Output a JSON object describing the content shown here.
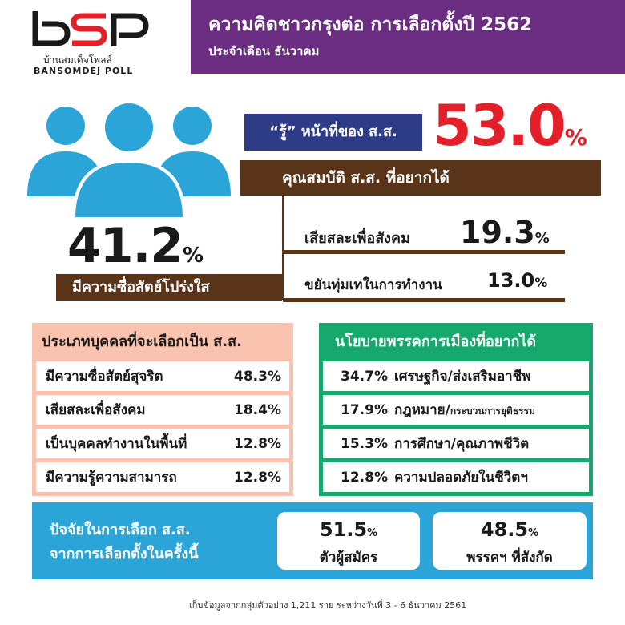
{
  "colors": {
    "purple": "#6b2d82",
    "navy": "#2e3b87",
    "red": "#e3202a",
    "brown": "#5a3419",
    "salmon": "#f9c3b0",
    "green": "#17a86e",
    "blue": "#2ba5d8",
    "people_icon": "#2ba5d8"
  },
  "logo": {
    "mark": "bSP",
    "subtitle": "บ้านสมเด็จโพลล์",
    "english": "BANSOMDEJ POLL"
  },
  "header": {
    "title": "ความคิดชาวกรุงต่อ การเลือกตั้งปี 2562",
    "subtitle": "ประจำเดือน ธันวาคม"
  },
  "chart_data": {
    "type": "table",
    "know_duty": {
      "label": "“รู้” หน้าที่ของ ส.ส.",
      "value": "53.0",
      "unit": "%"
    },
    "qualifications": {
      "title": "คุณสมบัติ ส.ส. ที่อยากได้",
      "items": [
        {
          "label": "มีความซื่อสัตย์โปร่งใส",
          "value": "41.2",
          "unit": "%"
        },
        {
          "label": "เสียสละเพื่อสังคม",
          "value": "19.3",
          "unit": "%"
        },
        {
          "label": "ขยันทุ่มเทในการทำงาน",
          "value": "13.0",
          "unit": "%"
        }
      ]
    },
    "person_types": {
      "title": "ประเภทบุคคลที่จะเลือกเป็น ส.ส.",
      "rows": [
        {
          "label": "มีความซื่อสัตย์สุจริต",
          "value": "48.3%"
        },
        {
          "label": "เสียสละเพื่อสังคม",
          "value": "18.4%"
        },
        {
          "label": "เป็นบุคคลทำงานในพื้นที่",
          "value": "12.8%"
        },
        {
          "label": "มีความรู้ความสามารถ",
          "value": "12.8%"
        }
      ]
    },
    "policies": {
      "title": "นโยบายพรรคการเมืองที่อยากได้",
      "rows": [
        {
          "value": "34.7%",
          "label": "เศรษฐกิจ/ส่งเสริมอาชีพ",
          "label_small": ""
        },
        {
          "value": "17.9%",
          "label": "กฎหมาย/",
          "label_small": "กระบวนการยุติธรรม"
        },
        {
          "value": "15.3%",
          "label": "การศึกษา/คุณภาพชีวิต",
          "label_small": ""
        },
        {
          "value": "12.8%",
          "label": "ความปลอดภัยในชีวิตฯ",
          "label_small": ""
        }
      ]
    },
    "factors": {
      "title_line1": "ปัจจัยในการเลือก ส.ส.",
      "title_line2": "จากการเลือกตั้งในครั้งนี้",
      "items": [
        {
          "value": "51.5",
          "unit": "%",
          "label": "ตัวผู้สมัคร"
        },
        {
          "value": "48.5",
          "unit": "%",
          "label": "พรรคฯ ที่สังกัด"
        }
      ]
    }
  },
  "footnote": "เก็บข้อมูลจากกลุ่มตัวอย่าง 1,211 ราย  ระหว่างวันที่  3 - 6 ธันวาคม 2561"
}
